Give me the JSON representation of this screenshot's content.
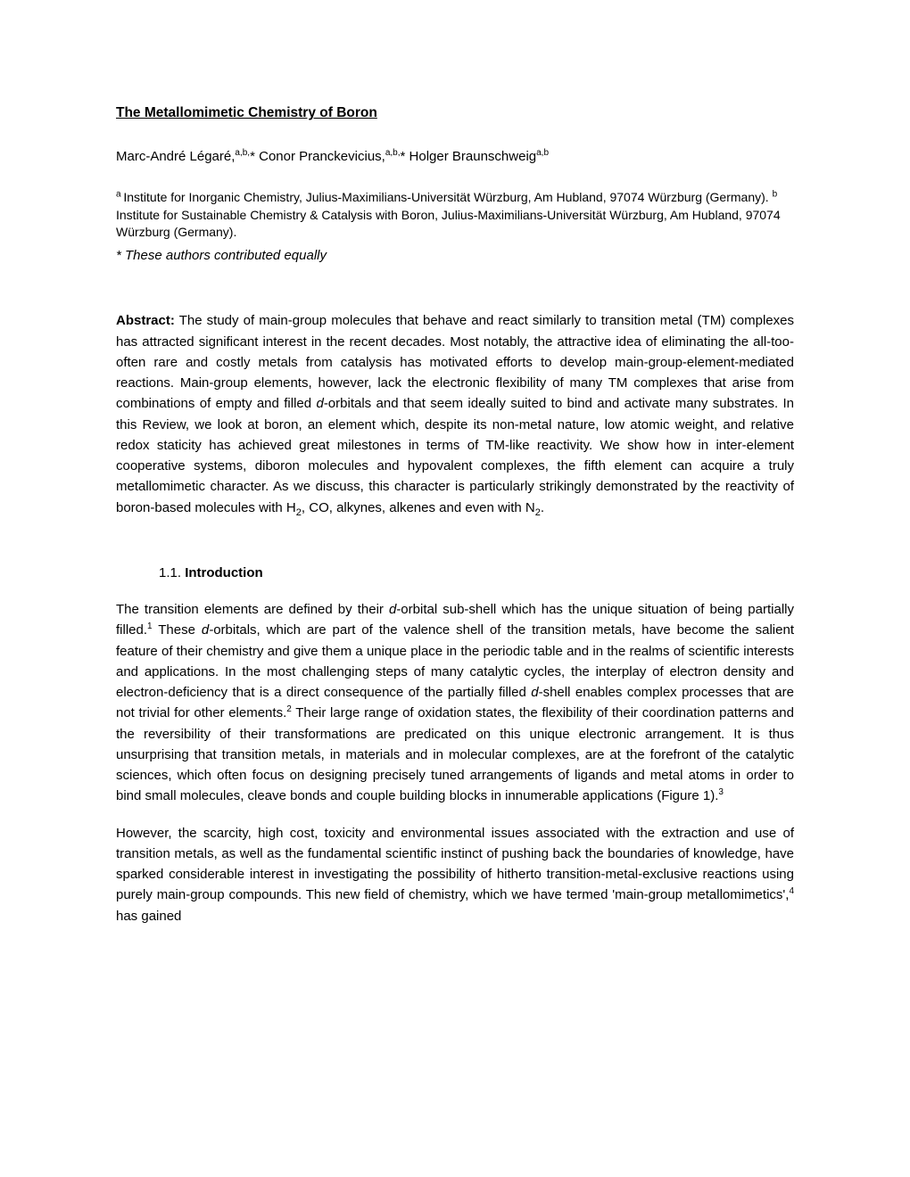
{
  "title": "The Metallomimetic Chemistry of Boron",
  "authors": {
    "a1_name": "Marc-André Légaré,",
    "a1_sup": "a,b,",
    "a1_star": "*",
    "a2_name": " Conor Pranckevicius,",
    "a2_sup": "a,b,",
    "a2_star": "*",
    "a3_name": " Holger Braunschweig",
    "a3_sup": "a,b"
  },
  "affil": {
    "sup_a": "a ",
    "text_a": "Institute for Inorganic Chemistry, Julius-Maximilians-Universität Würzburg, Am Hubland, 97074 Würzburg (Germany). ",
    "sup_b": "b ",
    "text_b": "Institute for Sustainable Chemistry & Catalysis with Boron, Julius-Maximilians-Universität Würzburg, Am Hubland, 97074 Würzburg (Germany)."
  },
  "contrib": "* These authors contributed equally",
  "abstract": {
    "label": "Abstract:",
    "p1a": " The study of main-group molecules that behave and react similarly to transition metal (TM) complexes has attracted significant interest in the recent decades. Most notably, the attractive idea of eliminating the all-too-often rare and costly metals from catalysis has motivated efforts to develop main-group-element-mediated reactions. Main-group elements, however, lack the electronic flexibility of many TM complexes that arise from combinations of empty and filled ",
    "p1_i1": "d",
    "p1b": "-orbitals and that seem ideally suited to bind and activate many substrates. In this Review, we look at boron, an element which, despite its non-metal nature, low atomic weight, and relative redox staticity has achieved great milestones in terms of TM-like reactivity. We show how in inter-element cooperative systems, diboron molecules and hypovalent complexes, the fifth element can acquire a truly metallomimetic character. As we discuss, this character is particularly strikingly demonstrated by the reactivity of boron-based molecules with H",
    "p1_sub1": "2",
    "p1c": ", CO, alkynes, alkenes and even with N",
    "p1_sub2": "2",
    "p1d": "."
  },
  "section": {
    "num": "1.1. ",
    "title": "Introduction"
  },
  "intro": {
    "p1a": "The transition elements are defined by their ",
    "p1_i1": "d",
    "p1b": "-orbital sub-shell which has the unique situation of being partially filled.",
    "p1_sup1": "1",
    "p1c": " These ",
    "p1_i2": "d-",
    "p1d": "orbitals, which are part of the valence shell of the transition metals, have become the salient feature of their chemistry and give them a unique place in the periodic table and in the realms of scientific interests and applications. In the most challenging steps of many catalytic cycles, the interplay of electron density and electron-deficiency that is a direct consequence of the partially filled ",
    "p1_i3": "d",
    "p1e": "-shell enables complex processes that are not trivial for other elements.",
    "p1_sup2": "2",
    "p1f": " Their large range of oxidation states, the flexibility of their coordination patterns and the reversibility of their transformations are predicated on this unique electronic arrangement. It is thus unsurprising that transition metals, in materials and in molecular complexes, are at the forefront of the catalytic sciences, which often focus on designing precisely tuned arrangements of ligands and metal atoms in order to bind small molecules, cleave bonds and couple building blocks in innumerable applications (Figure 1).",
    "p1_sup3": "3",
    "p2a": "However, the scarcity, high cost, toxicity and environmental issues associated with the extraction and use of transition metals, as well as the fundamental scientific instinct of pushing back the boundaries of knowledge, have sparked considerable interest in investigating the possibility of hitherto transition-metal-exclusive reactions using purely main-group compounds. This new field of chemistry, which we have termed 'main-group metallomimetics',",
    "p2_sup1": "4",
    "p2b": " has gained"
  }
}
